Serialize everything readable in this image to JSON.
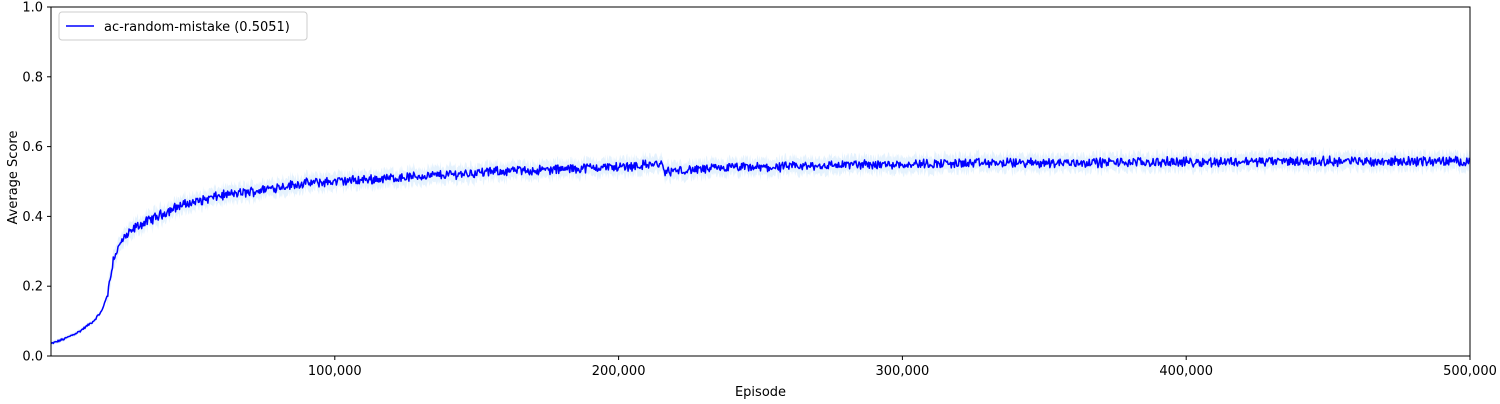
{
  "chart_data": {
    "type": "line",
    "title": "",
    "xlabel": "Episode",
    "ylabel": "Average Score",
    "xlim": [
      0,
      500000
    ],
    "ylim": [
      0.0,
      1.0
    ],
    "x_ticks": [
      100000,
      200000,
      300000,
      400000,
      500000
    ],
    "x_tick_labels": [
      "100,000",
      "200,000",
      "300,000",
      "400,000",
      "500,000"
    ],
    "y_ticks": [
      0.0,
      0.2,
      0.4,
      0.6,
      0.8,
      1.0
    ],
    "y_tick_labels": [
      "0.0",
      "0.2",
      "0.4",
      "0.6",
      "0.8",
      "1.0"
    ],
    "grid": false,
    "legend_position": "top-left",
    "series": [
      {
        "name": "ac-random-mistake (0.5051)",
        "color": "#0000ff",
        "band_color": "#cfe8fb",
        "x": [
          0,
          5000,
          10000,
          15000,
          18000,
          20000,
          22000,
          25000,
          30000,
          35000,
          40000,
          45000,
          50000,
          60000,
          70000,
          80000,
          90000,
          100000,
          110000,
          120000,
          130000,
          140000,
          150000,
          160000,
          170000,
          180000,
          190000,
          200000,
          210000,
          215000,
          216000,
          220000,
          230000,
          240000,
          250000,
          260000,
          270000,
          280000,
          300000,
          320000,
          340000,
          360000,
          380000,
          400000,
          420000,
          440000,
          460000,
          480000,
          500000
        ],
        "y": [
          0.035,
          0.05,
          0.07,
          0.1,
          0.13,
          0.18,
          0.28,
          0.33,
          0.37,
          0.39,
          0.41,
          0.43,
          0.44,
          0.46,
          0.47,
          0.485,
          0.495,
          0.5,
          0.505,
          0.51,
          0.515,
          0.52,
          0.525,
          0.53,
          0.532,
          0.535,
          0.54,
          0.542,
          0.548,
          0.55,
          0.528,
          0.53,
          0.535,
          0.54,
          0.54,
          0.542,
          0.545,
          0.548,
          0.55,
          0.552,
          0.553,
          0.554,
          0.555,
          0.556,
          0.557,
          0.558,
          0.558,
          0.558,
          0.558
        ]
      }
    ]
  }
}
